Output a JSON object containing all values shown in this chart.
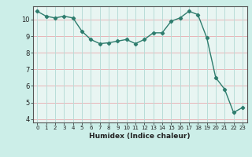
{
  "x": [
    0,
    1,
    2,
    3,
    4,
    5,
    6,
    7,
    8,
    9,
    10,
    11,
    12,
    13,
    14,
    15,
    16,
    17,
    18,
    19,
    20,
    21,
    22,
    23
  ],
  "y": [
    10.5,
    10.2,
    10.1,
    10.2,
    10.1,
    9.3,
    8.8,
    8.55,
    8.6,
    8.7,
    8.8,
    8.55,
    8.8,
    9.2,
    9.2,
    9.9,
    10.1,
    10.5,
    10.3,
    8.9,
    6.5,
    5.8,
    4.4,
    4.7
  ],
  "xlabel": "Humidex (Indice chaleur)",
  "line_color": "#2e7d6e",
  "marker": "D",
  "marker_size": 2.2,
  "bg_color": "#cceee8",
  "plot_bg": "#e8f5f2",
  "grid_color_h": "#e8b4b8",
  "grid_color_v": "#b8ddd8",
  "ylim": [
    3.8,
    10.8
  ],
  "xlim": [
    -0.5,
    23.5
  ],
  "yticks": [
    4,
    5,
    6,
    7,
    8,
    9,
    10
  ],
  "xticks": [
    0,
    1,
    2,
    3,
    4,
    5,
    6,
    7,
    8,
    9,
    10,
    11,
    12,
    13,
    14,
    15,
    16,
    17,
    18,
    19,
    20,
    21,
    22,
    23
  ],
  "line_width": 1.0
}
